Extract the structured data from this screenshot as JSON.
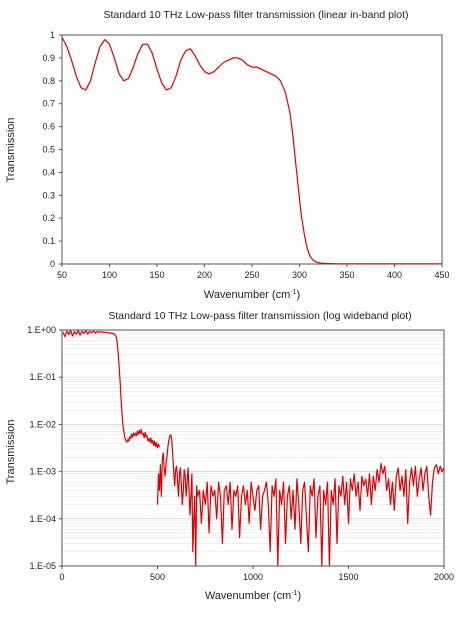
{
  "chart_data": [
    {
      "type": "line",
      "title": "Standard 10 THz Low-pass filter transmission (linear in-band plot)",
      "xlabel_main": "Wavenumber",
      "xlabel_unit": "(cm",
      "xlabel_sup": "-1",
      "xlabel_close": ")",
      "ylabel": "Transmission",
      "xlim": [
        50,
        450
      ],
      "ylim": [
        0,
        1
      ],
      "x_ticks": [
        "50",
        "100",
        "150",
        "200",
        "250",
        "300",
        "350",
        "400",
        "450"
      ],
      "y_ticks": [
        "0",
        "0.1",
        "0.2",
        "0.3",
        "0.4",
        "0.5",
        "0.6",
        "0.7",
        "0.8",
        "0.9",
        "1"
      ],
      "grid": false,
      "color": "#e00000",
      "series": [
        {
          "x": [
            50,
            55,
            60,
            65,
            70,
            75,
            80,
            85,
            90,
            95,
            100,
            105,
            110,
            115,
            120,
            125,
            130,
            135,
            140,
            145,
            150,
            155,
            160,
            165,
            170,
            175,
            180,
            185,
            190,
            195,
            200,
            205,
            210,
            215,
            220,
            225,
            230,
            235,
            240,
            245,
            250,
            255,
            260,
            265,
            270,
            275,
            280,
            285,
            290,
            293,
            296,
            299,
            302,
            305,
            308,
            311,
            314,
            318,
            322,
            328,
            340,
            360,
            380,
            400,
            420,
            440,
            450
          ],
          "y": [
            0.99,
            0.95,
            0.89,
            0.82,
            0.77,
            0.76,
            0.8,
            0.88,
            0.95,
            0.98,
            0.96,
            0.9,
            0.83,
            0.8,
            0.81,
            0.86,
            0.92,
            0.96,
            0.96,
            0.92,
            0.85,
            0.79,
            0.76,
            0.77,
            0.82,
            0.89,
            0.93,
            0.94,
            0.91,
            0.87,
            0.84,
            0.83,
            0.84,
            0.86,
            0.88,
            0.89,
            0.9,
            0.9,
            0.89,
            0.87,
            0.86,
            0.86,
            0.85,
            0.84,
            0.83,
            0.82,
            0.8,
            0.75,
            0.66,
            0.56,
            0.44,
            0.32,
            0.21,
            0.13,
            0.07,
            0.035,
            0.018,
            0.008,
            0.004,
            0.002,
            0.001,
            0.001,
            0.001,
            0.001,
            0.001,
            0.001,
            0.001
          ]
        }
      ]
    },
    {
      "type": "line",
      "title": "Standard 10 THz Low-pass filter transmission (log wideband plot)",
      "xlabel_main": "Wavenumber",
      "xlabel_unit": "(cm",
      "xlabel_sup": "-1",
      "xlabel_close": ")",
      "ylabel": "Transmission",
      "xlim": [
        0,
        2000
      ],
      "ylim": [
        1e-05,
        1
      ],
      "yscale": "log",
      "x_ticks": [
        "0",
        "500",
        "1000",
        "1500",
        "2000"
      ],
      "y_ticks": [
        "1.E-05",
        "1.E-04",
        "1.E-03",
        "1.E-02",
        "1.E-01",
        "1.E+00"
      ],
      "grid": true,
      "color": "#e00000",
      "series": [
        {
          "x": [
            5,
            15,
            25,
            35,
            45,
            55,
            65,
            75,
            85,
            95,
            105,
            115,
            125,
            135,
            145,
            155,
            165,
            175,
            185,
            195,
            205,
            215,
            225,
            235,
            245,
            255,
            265,
            275,
            285,
            290,
            295,
            300,
            305,
            310,
            315,
            320,
            325,
            330,
            335,
            340,
            345,
            350,
            355,
            360,
            365,
            370,
            375,
            380,
            385,
            390,
            395,
            400,
            405,
            410,
            415,
            420,
            425,
            430,
            435,
            440,
            445,
            450,
            455,
            460,
            465,
            470,
            475,
            480,
            485,
            490,
            495,
            500,
            505,
            510
          ],
          "y": [
            0.9,
            0.72,
            0.95,
            0.8,
            0.98,
            0.75,
            0.92,
            0.82,
            0.97,
            0.78,
            0.94,
            0.85,
            0.96,
            0.82,
            0.93,
            0.88,
            0.95,
            0.86,
            0.93,
            0.9,
            0.92,
            0.89,
            0.9,
            0.88,
            0.87,
            0.86,
            0.85,
            0.82,
            0.7,
            0.5,
            0.3,
            0.15,
            0.07,
            0.03,
            0.015,
            0.009,
            0.0065,
            0.005,
            0.0045,
            0.0042,
            0.0048,
            0.0044,
            0.0055,
            0.005,
            0.0062,
            0.0054,
            0.0066,
            0.0058,
            0.0065,
            0.0057,
            0.0072,
            0.0062,
            0.0075,
            0.0064,
            0.0078,
            0.0062,
            0.0064,
            0.0052,
            0.0068,
            0.0055,
            0.0058,
            0.0045,
            0.005,
            0.0042,
            0.0052,
            0.004,
            0.0046,
            0.0036,
            0.0044,
            0.0034,
            0.0041,
            0.0032,
            0.0038,
            0.0033
          ]
        },
        {
          "x": [
            500,
            505,
            510,
            515,
            520,
            525,
            530,
            535,
            540,
            545,
            550,
            555,
            560,
            565,
            570,
            575,
            580,
            585,
            590,
            595,
            600,
            605,
            610,
            615,
            620,
            625,
            630,
            635,
            640,
            645,
            650,
            655,
            660,
            665,
            670,
            675,
            680,
            685,
            690,
            695,
            700,
            705,
            710,
            720,
            730,
            740,
            750,
            760,
            770,
            780,
            790,
            800,
            810,
            820,
            830,
            840,
            850,
            860,
            870,
            880,
            890,
            900,
            910,
            920,
            930,
            940,
            950,
            960,
            970,
            980,
            990,
            1000,
            1010,
            1020,
            1030,
            1040,
            1050,
            1060,
            1070,
            1080,
            1090,
            1100,
            1110,
            1120,
            1130,
            1140,
            1150,
            1160,
            1170,
            1180,
            1190,
            1200,
            1210,
            1220,
            1230,
            1240,
            1250,
            1260,
            1270,
            1280,
            1290,
            1300,
            1310,
            1320,
            1330,
            1340,
            1350,
            1360,
            1370,
            1380,
            1390,
            1400,
            1410,
            1420,
            1430,
            1440,
            1450,
            1460,
            1470,
            1480,
            1490,
            1500,
            1510,
            1520,
            1530,
            1540,
            1550,
            1560,
            1570,
            1580,
            1590,
            1600,
            1610,
            1620,
            1630,
            1640,
            1650,
            1660,
            1670,
            1680,
            1690,
            1700,
            1710,
            1720,
            1730,
            1740,
            1750,
            1760,
            1770,
            1780,
            1790,
            1800,
            1810,
            1820,
            1830,
            1840,
            1850,
            1860,
            1870,
            1880,
            1890,
            1900,
            1910,
            1920,
            1930,
            1940,
            1950,
            1960,
            1970,
            1980,
            1990,
            2000
          ],
          "y": [
            0.0002,
            0.0009,
            0.0004,
            0.0014,
            0.0003,
            0.0018,
            0.0025,
            0.0012,
            0.0008,
            0.0015,
            0.0022,
            0.0035,
            0.0048,
            0.0058,
            0.006,
            0.0045,
            0.0022,
            0.001,
            0.0005,
            0.0011,
            0.0013,
            0.0006,
            0.0003,
            0.0009,
            0.0012,
            0.0005,
            0.0002,
            0.0004,
            0.0011,
            0.0008,
            0.0003,
            0.0006,
            0.0012,
            0.0004,
            0.00012,
            0.0003,
            0.0009,
            2e-05,
            0.0001,
            0.0003,
            1e-05,
            0.0005,
            0.0003,
            0.0004,
            8e-05,
            0.0004,
            0.0002,
            0.0006,
            5e-05,
            0.0005,
            0.0003,
            0.0004,
            0.0001,
            0.0006,
            0.0003,
            3e-05,
            0.0004,
            0.0005,
            0.0002,
            0.0006,
            6e-05,
            0.0004,
            0.0003,
            0.0005,
            4e-05,
            0.0003,
            0.0005,
            0.0002,
            0.0004,
            8e-05,
            0.0006,
            0.0003,
            0.00015,
            0.0004,
            0.0005,
            6e-05,
            0.0003,
            0.0004,
            0.0006,
            0.0002,
            2e-05,
            0.0005,
            0.0003,
            0.0007,
            1e-05,
            0.0004,
            0.0002,
            0.0006,
            3e-05,
            0.0003,
            0.0005,
            0.0001,
            0.0004,
            6e-05,
            0.0007,
            0.0002,
            3e-05,
            0.0004,
            0.0006,
            0.0001,
            2e-05,
            0.0005,
            0.0003,
            0.0007,
            4e-05,
            0.0003,
            0.0005,
            1e-05,
            0.0004,
            0.0002,
            0.0006,
            1e-05,
            0.0004,
            0.0002,
            0.0007,
            3e-05,
            0.0005,
            0.0003,
            0.0008,
            0.0002,
            0.0006,
            8e-05,
            0.0007,
            0.0004,
            0.0009,
            0.0003,
            0.0006,
            0.00015,
            0.0008,
            0.0005,
            0.0007,
            0.0003,
            0.0009,
            0.0002,
            0.0008,
            0.0004,
            0.0011,
            0.0006,
            0.0015,
            0.0009,
            0.0013,
            0.0004,
            0.0007,
            0.0002,
            0.0006,
            0.00015,
            0.0008,
            0.0012,
            0.0004,
            0.0008,
            0.0003,
            0.0011,
            8e-05,
            0.0006,
            0.0012,
            0.0005,
            0.0013,
            0.0003,
            0.0007,
            0.0012,
            0.0004,
            0.0009,
            0.0013,
            0.0003,
            0.00012,
            0.0006,
            0.0012,
            0.0014,
            0.0009,
            0.0013,
            0.001,
            0.0012
          ]
        }
      ]
    }
  ]
}
